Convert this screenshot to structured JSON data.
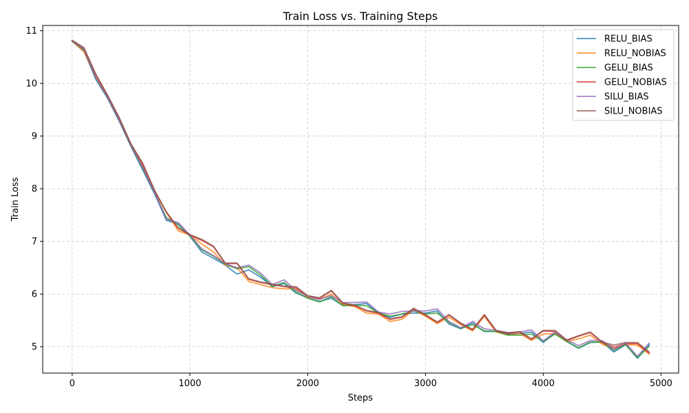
{
  "chart_data": {
    "type": "line",
    "title": "Train Loss vs. Training Steps",
    "xlabel": "Steps",
    "ylabel": "Train Loss",
    "xlim": [
      -250,
      5150
    ],
    "ylim": [
      4.5,
      11.1
    ],
    "xticks": [
      0,
      1000,
      2000,
      3000,
      4000,
      5000
    ],
    "yticks": [
      5,
      6,
      7,
      8,
      9,
      10,
      11
    ],
    "grid": true,
    "legend_position": "top-right",
    "x": [
      0,
      100,
      200,
      300,
      400,
      500,
      600,
      700,
      800,
      900,
      1000,
      1100,
      1200,
      1300,
      1400,
      1500,
      1600,
      1700,
      1800,
      1900,
      2000,
      2100,
      2200,
      2300,
      2400,
      2500,
      2600,
      2700,
      2800,
      2900,
      3000,
      3100,
      3200,
      3300,
      3400,
      3500,
      3600,
      3700,
      3800,
      3900,
      4000,
      4100,
      4200,
      4300,
      4400,
      4500,
      4600,
      4700,
      4800,
      4900
    ],
    "series": [
      {
        "name": "RELU_BIAS",
        "color": "#1f77b4",
        "values": [
          10.8,
          10.62,
          10.08,
          9.72,
          9.28,
          8.8,
          8.35,
          7.9,
          7.4,
          7.33,
          7.1,
          6.8,
          6.68,
          6.55,
          6.38,
          6.46,
          6.32,
          6.14,
          6.2,
          6.02,
          5.93,
          5.86,
          5.92,
          5.78,
          5.8,
          5.82,
          5.65,
          5.56,
          5.62,
          5.64,
          5.64,
          5.68,
          5.43,
          5.34,
          5.45,
          5.29,
          5.29,
          5.24,
          5.25,
          5.28,
          5.08,
          5.26,
          5.1,
          4.97,
          5.08,
          5.09,
          4.9,
          5.04,
          4.78,
          5.04
        ]
      },
      {
        "name": "RELU_NOBIAS",
        "color": "#ff7f0e",
        "values": [
          10.8,
          10.6,
          10.12,
          9.74,
          9.3,
          8.82,
          8.42,
          7.95,
          7.55,
          7.2,
          7.12,
          6.95,
          6.8,
          6.55,
          6.5,
          6.24,
          6.18,
          6.12,
          6.1,
          6.1,
          5.94,
          5.9,
          6.0,
          5.8,
          5.76,
          5.64,
          5.62,
          5.48,
          5.52,
          5.7,
          5.58,
          5.44,
          5.56,
          5.42,
          5.3,
          5.58,
          5.28,
          5.22,
          5.25,
          5.12,
          5.24,
          5.25,
          5.1,
          5.15,
          5.22,
          5.05,
          4.96,
          5.04,
          5.03,
          4.86
        ]
      },
      {
        "name": "GELU_BIAS",
        "color": "#2ca02c",
        "values": [
          10.8,
          10.64,
          10.1,
          9.73,
          9.29,
          8.81,
          8.38,
          7.92,
          7.45,
          7.32,
          7.1,
          6.84,
          6.72,
          6.57,
          6.48,
          6.52,
          6.36,
          6.15,
          6.22,
          6.04,
          5.92,
          5.85,
          5.95,
          5.78,
          5.79,
          5.78,
          5.64,
          5.58,
          5.62,
          5.68,
          5.62,
          5.64,
          5.46,
          5.35,
          5.42,
          5.3,
          5.29,
          5.22,
          5.22,
          5.24,
          5.1,
          5.24,
          5.1,
          4.98,
          5.09,
          5.09,
          4.93,
          5.04,
          4.79,
          5.01
        ]
      },
      {
        "name": "GELU_NOBIAS",
        "color": "#d62728",
        "values": [
          10.81,
          10.66,
          10.17,
          9.77,
          9.34,
          8.84,
          8.46,
          7.96,
          7.55,
          7.25,
          7.12,
          7.02,
          6.9,
          6.58,
          6.58,
          6.28,
          6.22,
          6.18,
          6.14,
          6.12,
          5.96,
          5.92,
          6.06,
          5.82,
          5.78,
          5.68,
          5.64,
          5.52,
          5.56,
          5.72,
          5.6,
          5.46,
          5.6,
          5.44,
          5.32,
          5.6,
          5.3,
          5.25,
          5.28,
          5.14,
          5.3,
          5.29,
          5.12,
          5.2,
          5.27,
          5.08,
          4.99,
          5.06,
          5.06,
          4.88
        ]
      },
      {
        "name": "SILU_BIAS",
        "color": "#9467bd",
        "values": [
          10.81,
          10.65,
          10.11,
          9.74,
          9.3,
          8.82,
          8.4,
          7.92,
          7.42,
          7.36,
          7.12,
          6.86,
          6.73,
          6.58,
          6.5,
          6.55,
          6.4,
          6.18,
          6.27,
          6.07,
          5.96,
          5.9,
          5.97,
          5.84,
          5.84,
          5.85,
          5.66,
          5.62,
          5.67,
          5.68,
          5.68,
          5.72,
          5.48,
          5.36,
          5.48,
          5.34,
          5.31,
          5.27,
          5.28,
          5.32,
          5.11,
          5.28,
          5.13,
          5.02,
          5.12,
          5.12,
          4.95,
          5.07,
          4.82,
          5.07
        ]
      },
      {
        "name": "SILU_NOBIAS",
        "color": "#8c564b",
        "values": [
          10.82,
          10.68,
          10.18,
          9.78,
          9.35,
          8.85,
          8.48,
          7.97,
          7.56,
          7.26,
          7.13,
          7.04,
          6.91,
          6.59,
          6.59,
          6.29,
          6.23,
          6.19,
          6.15,
          6.14,
          5.97,
          5.93,
          6.07,
          5.83,
          5.79,
          5.69,
          5.65,
          5.53,
          5.57,
          5.73,
          5.61,
          5.47,
          5.61,
          5.45,
          5.33,
          5.61,
          5.31,
          5.26,
          5.29,
          5.15,
          5.31,
          5.31,
          5.13,
          5.21,
          5.28,
          5.09,
          5.03,
          5.08,
          5.08,
          4.9
        ]
      }
    ]
  }
}
